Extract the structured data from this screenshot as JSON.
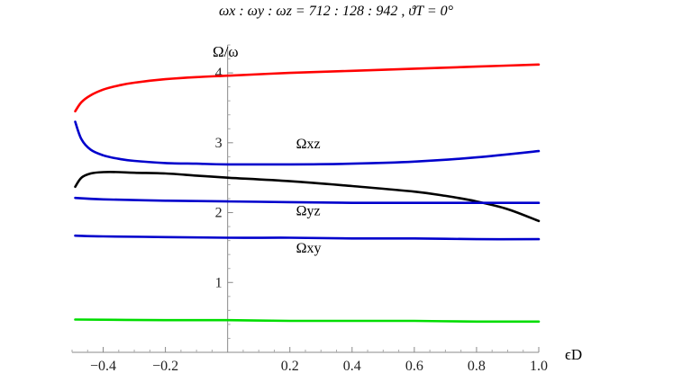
{
  "chart_data": {
    "type": "line",
    "title": "ωx : ωy : ωz   =   712 : 128 : 942   ,   ϑT = 0°",
    "xlabel": "ϵD",
    "ylabel": "Ω/ω",
    "xlim": [
      -0.5,
      1.0
    ],
    "ylim": [
      0,
      4.4
    ],
    "x_ticks": [
      -0.4,
      -0.2,
      0.2,
      0.4,
      0.6,
      0.8,
      1.0
    ],
    "x_tick_labels": [
      "−0.4",
      "−0.2",
      "0.2",
      "0.4",
      "0.6",
      "0.8",
      "1.0"
    ],
    "y_ticks": [
      1,
      2,
      3,
      4
    ],
    "y_tick_labels": [
      "1",
      "2",
      "3",
      "4"
    ],
    "grid": false,
    "series": [
      {
        "color": "#ff0000",
        "x": [
          -0.49,
          -0.47,
          -0.44,
          -0.4,
          -0.35,
          -0.3,
          -0.2,
          -0.1,
          0.0,
          0.2,
          0.4,
          0.6,
          0.8,
          1.0
        ],
        "y": [
          3.45,
          3.58,
          3.68,
          3.76,
          3.82,
          3.86,
          3.91,
          3.94,
          3.96,
          4.0,
          4.03,
          4.06,
          4.09,
          4.12
        ]
      },
      {
        "name": "Ωxz",
        "color": "#0000cc",
        "x": [
          -0.49,
          -0.47,
          -0.44,
          -0.4,
          -0.35,
          -0.3,
          -0.2,
          -0.1,
          0.0,
          0.2,
          0.4,
          0.6,
          0.8,
          1.0
        ],
        "y": [
          3.3,
          3.05,
          2.9,
          2.82,
          2.77,
          2.74,
          2.71,
          2.7,
          2.69,
          2.69,
          2.7,
          2.73,
          2.79,
          2.88
        ]
      },
      {
        "color": "#000000",
        "x": [
          -0.49,
          -0.47,
          -0.44,
          -0.4,
          -0.35,
          -0.3,
          -0.2,
          -0.1,
          0.0,
          0.2,
          0.4,
          0.6,
          0.7,
          0.8,
          0.9,
          1.0
        ],
        "y": [
          2.37,
          2.5,
          2.56,
          2.58,
          2.58,
          2.57,
          2.56,
          2.53,
          2.5,
          2.45,
          2.38,
          2.3,
          2.24,
          2.16,
          2.05,
          1.88
        ]
      },
      {
        "name": "Ωyz",
        "color": "#0000cc",
        "x": [
          -0.49,
          -0.4,
          -0.2,
          0.0,
          0.2,
          0.4,
          0.6,
          0.8,
          1.0
        ],
        "y": [
          2.21,
          2.19,
          2.17,
          2.16,
          2.15,
          2.14,
          2.14,
          2.14,
          2.14
        ]
      },
      {
        "name": "Ωxy",
        "color": "#0000cc",
        "x": [
          -0.49,
          -0.4,
          -0.2,
          0.0,
          0.2,
          0.4,
          0.6,
          0.8,
          1.0
        ],
        "y": [
          1.67,
          1.66,
          1.65,
          1.64,
          1.64,
          1.63,
          1.63,
          1.62,
          1.62
        ]
      },
      {
        "color": "#00dd00",
        "x": [
          -0.49,
          -0.2,
          0.0,
          0.2,
          0.4,
          0.6,
          0.8,
          1.0
        ],
        "y": [
          0.47,
          0.46,
          0.46,
          0.45,
          0.45,
          0.45,
          0.44,
          0.44
        ]
      }
    ],
    "annotations": [
      {
        "text": "Ωxz",
        "x": 0.22,
        "y": 2.92
      },
      {
        "text": "Ωyz",
        "x": 0.22,
        "y": 1.96
      },
      {
        "text": "Ωxy",
        "x": 0.22,
        "y": 1.43
      }
    ]
  }
}
